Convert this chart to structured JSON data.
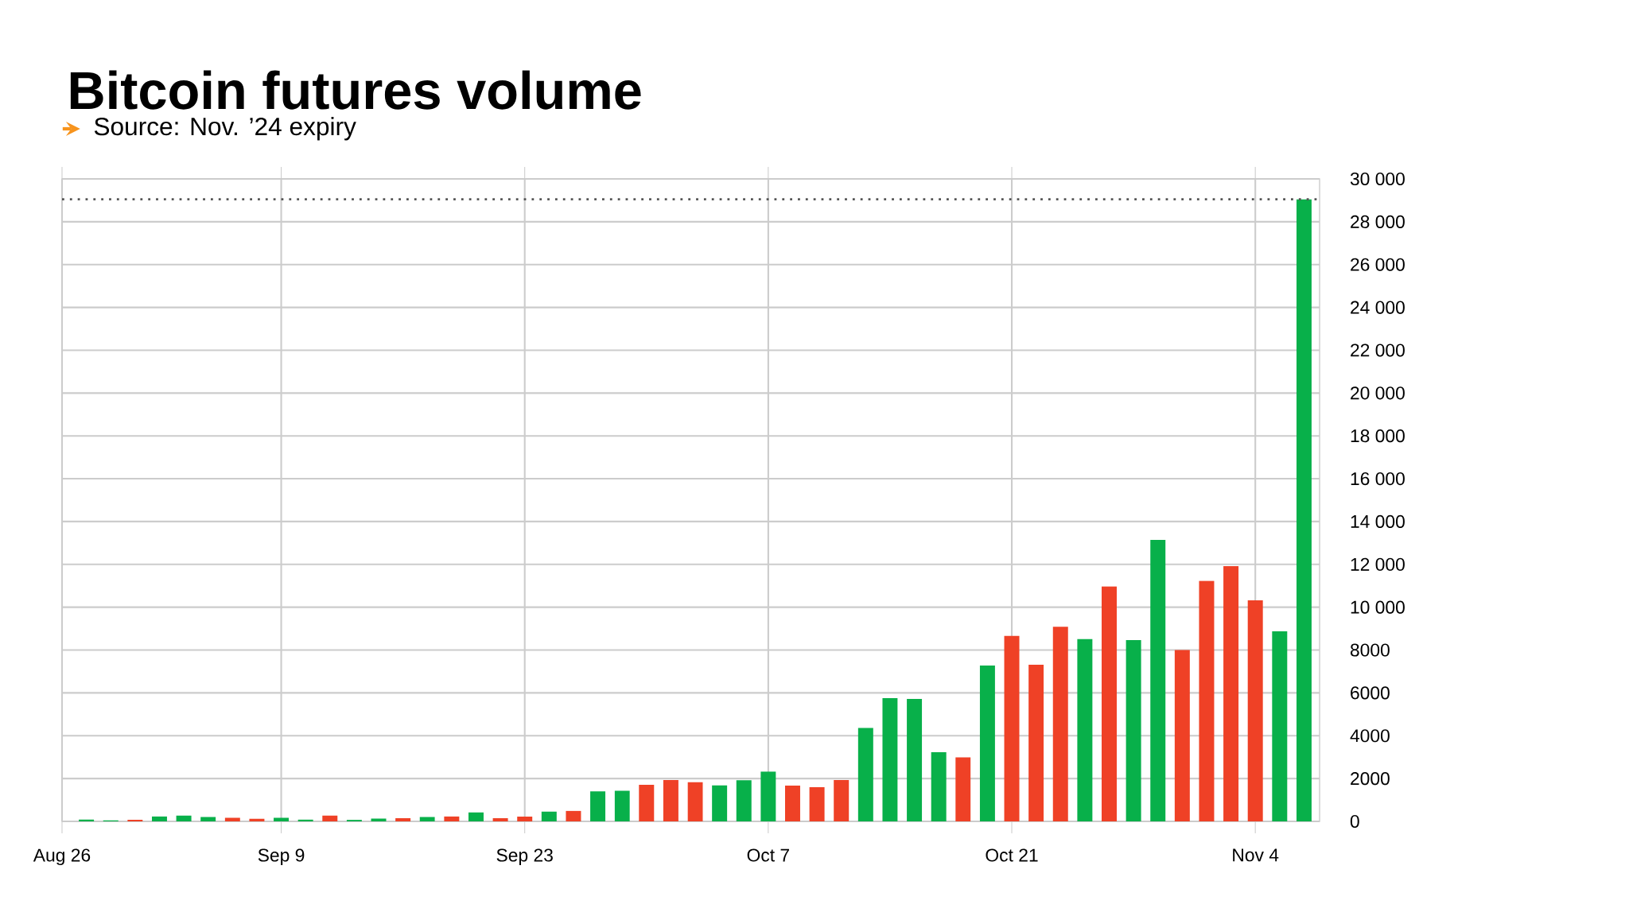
{
  "chart_data": {
    "type": "bar",
    "title": "Bitcoin futures volume",
    "annotations": [
      "Source: Nov. ’24 expiry"
    ],
    "categories": [
      "Aug 26",
      null,
      null,
      null,
      null,
      null,
      null,
      null,
      null,
      "Sep 9",
      null,
      null,
      null,
      null,
      null,
      null,
      null,
      null,
      null,
      "Sep 23",
      null,
      null,
      null,
      null,
      null,
      null,
      null,
      null,
      null,
      "Oct 7",
      null,
      null,
      null,
      null,
      null,
      null,
      null,
      null,
      null,
      "Oct 21",
      null,
      null,
      null,
      null,
      null,
      null,
      null,
      null,
      null,
      "Nov 4",
      null,
      null
    ],
    "values": [
      null,
      80,
      50,
      70,
      230,
      270,
      200,
      170,
      120,
      170,
      80,
      270,
      70,
      130,
      150,
      200,
      230,
      420,
      150,
      220,
      450,
      490,
      1400,
      1430,
      1710,
      1930,
      1830,
      1680,
      1920,
      2330,
      1670,
      1600,
      1930,
      4360,
      5750,
      5720,
      3230,
      2990,
      7280,
      8660,
      7310,
      9090,
      8510,
      10970,
      8460,
      13140,
      8000,
      11230,
      11920,
      10320,
      8880,
      29050
    ],
    "colors": [
      "#08b04a",
      "#08b04a",
      "#08b04a",
      "#ef4126",
      "#08b04a",
      "#08b04a",
      "#08b04a",
      "#ef4126",
      "#ef4126",
      "#08b04a",
      "#08b04a",
      "#ef4126",
      "#08b04a",
      "#08b04a",
      "#ef4126",
      "#08b04a",
      "#ef4126",
      "#08b04a",
      "#ef4126",
      "#ef4126",
      "#08b04a",
      "#ef4126",
      "#08b04a",
      "#08b04a",
      "#ef4126",
      "#ef4126",
      "#ef4126",
      "#08b04a",
      "#08b04a",
      "#08b04a",
      "#ef4126",
      "#ef4126",
      "#ef4126",
      "#08b04a",
      "#08b04a",
      "#08b04a",
      "#08b04a",
      "#ef4126",
      "#08b04a",
      "#ef4126",
      "#ef4126",
      "#ef4126",
      "#08b04a",
      "#ef4126",
      "#08b04a",
      "#08b04a",
      "#ef4126",
      "#ef4126",
      "#ef4126",
      "#ef4126",
      "#08b04a",
      "#08b04a"
    ],
    "ylim": [
      0,
      30000
    ],
    "yticks": [
      0,
      2000,
      4000,
      6000,
      8000,
      {
        "value": 10000,
        "label": "10 000"
      },
      {
        "value": 12000,
        "label": "12 000"
      },
      {
        "value": 14000,
        "label": "14 000"
      },
      {
        "value": 16000,
        "label": "16 000"
      },
      {
        "value": 18000,
        "label": "18 000"
      },
      {
        "value": 20000,
        "label": "20 000"
      },
      {
        "value": 22000,
        "label": "22 000"
      },
      {
        "value": 24000,
        "label": "24 000"
      },
      {
        "value": 26000,
        "label": "26 000"
      },
      {
        "value": 28000,
        "label": "28 000"
      },
      {
        "value": 30000,
        "label": "30 000"
      }
    ],
    "ref_lines": [
      {
        "axis": "y",
        "value": 29050,
        "line_style": "dotted",
        "color": "#555555"
      }
    ],
    "grid": true,
    "legend": false
  }
}
